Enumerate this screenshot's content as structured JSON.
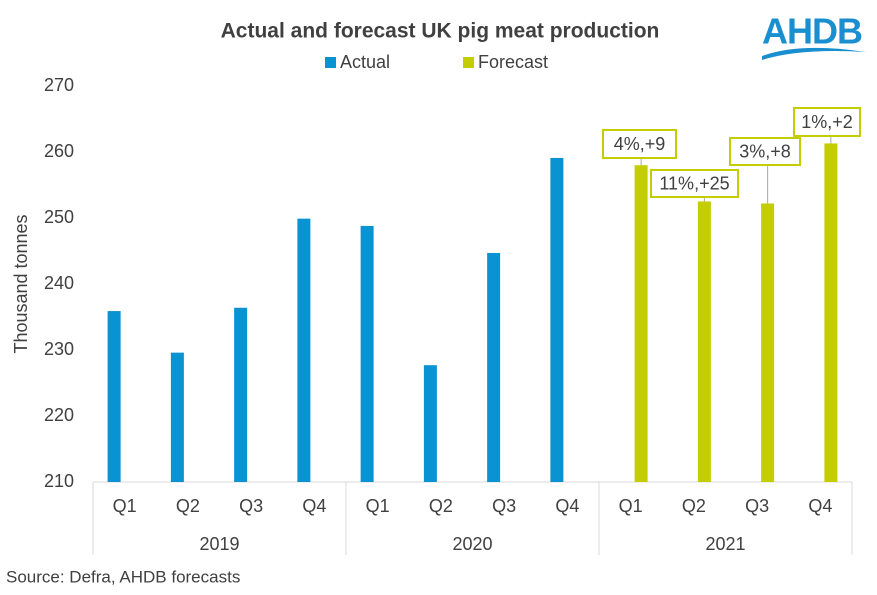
{
  "chart_data": {
    "type": "bar",
    "title": "Actual and forecast UK pig meat production",
    "logo": "AHDB",
    "y_label": "Thousand tonnes",
    "source": "Source: Defra, AHDB forecasts",
    "groups": [
      {
        "name": "2019",
        "categories": [
          "Q1",
          "Q2",
          "Q3",
          "Q4"
        ]
      },
      {
        "name": "2020",
        "categories": [
          "Q1",
          "Q2",
          "Q3",
          "Q4"
        ]
      },
      {
        "name": "2021",
        "categories": [
          "Q1",
          "Q2",
          "Q3",
          "Q4"
        ]
      }
    ],
    "series": [
      {
        "name": "Actual",
        "color": "#0a93d2",
        "values": [
          235.9,
          229.6,
          236.4,
          249.9,
          248.8,
          227.7,
          244.7,
          259.1,
          null,
          null,
          null,
          null
        ]
      },
      {
        "name": "Forecast",
        "color": "#c3cd00",
        "values": [
          null,
          null,
          null,
          null,
          null,
          null,
          null,
          null,
          258.0,
          252.5,
          252.2,
          261.3
        ],
        "annotations": [
          null,
          null,
          null,
          null,
          null,
          null,
          null,
          null,
          "4%,+9",
          "11%,+25",
          "3%,+8",
          "1%,+2"
        ]
      }
    ],
    "ylim": [
      210,
      270
    ],
    "yticks": [
      210,
      220,
      230,
      240,
      250,
      260,
      270
    ],
    "grid": false
  }
}
